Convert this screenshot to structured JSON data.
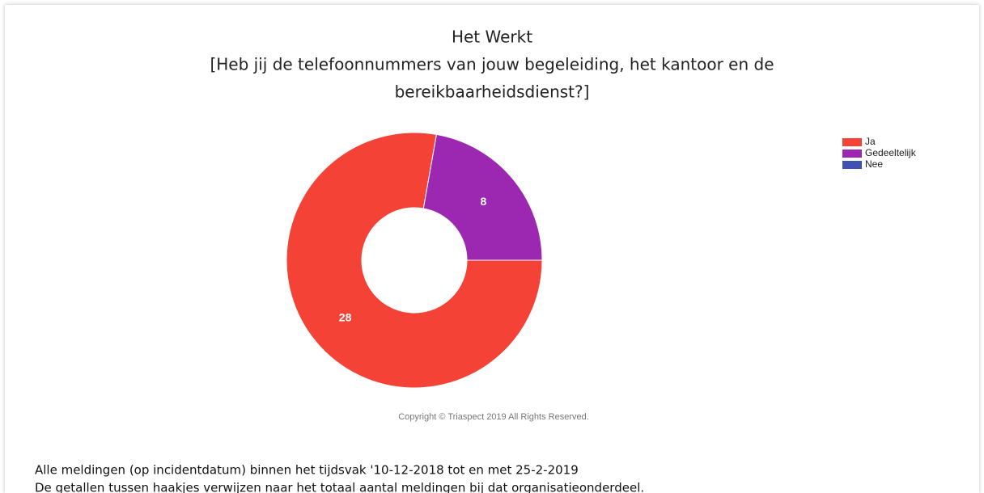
{
  "chart_data": {
    "type": "donut",
    "title": [
      "Het Werkt",
      "[Heb jij de telefoonnummers van jouw begeleiding, het kantoor en de",
      "bereikbaarheidsdienst?]"
    ],
    "categories": [
      "Ja",
      "Gedeeltelijk",
      "Nee"
    ],
    "values": [
      28,
      8,
      0
    ],
    "colors": [
      "#f44336",
      "#9c27b0",
      "#3f51b5"
    ],
    "start_angle": 90,
    "legend": "top-right",
    "copyright": "Copyright © Triaspect 2019 All Rights Reserved."
  },
  "footer": [
    "Alle meldingen (op incidentdatum) binnen het tijdsvak '10-12-2018 tot en met 25-2-2019",
    "De getallen tussen haakjes verwijzen naar het totaal aantal meldingen bij dat organisatieonderdeel."
  ]
}
